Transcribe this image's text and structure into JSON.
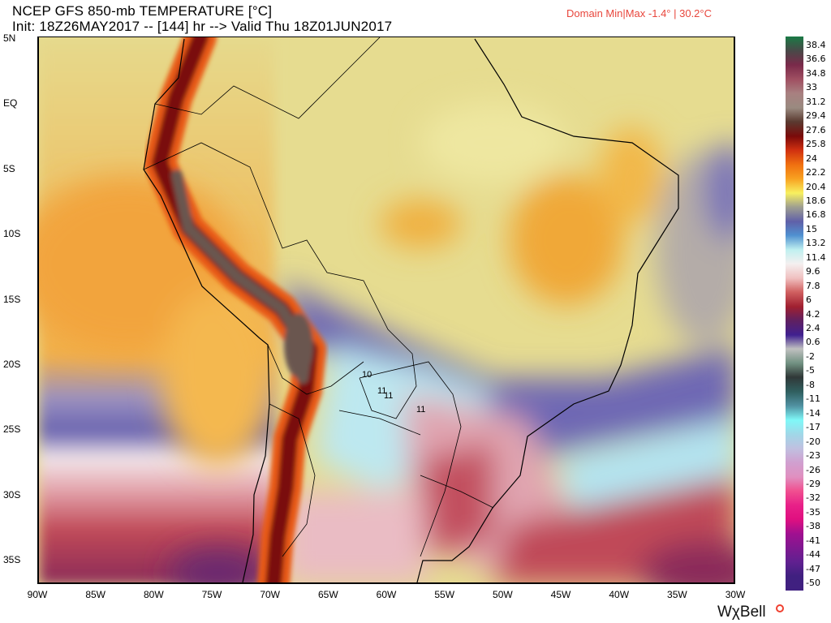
{
  "header": {
    "title": "NCEP GFS 850-mb TEMPERATURE [°C]",
    "subtitle": "Init: 18Z26MAY2017 -- [144] hr --> Valid Thu 18Z01JUN2017",
    "domain_minmax": "Domain Min|Max -1.4° | 30.2°C"
  },
  "map": {
    "lat_labels": [
      "5N",
      "EQ",
      "5S",
      "10S",
      "15S",
      "20S",
      "25S",
      "30S",
      "35S"
    ],
    "lon_labels": [
      "90W",
      "85W",
      "80W",
      "75W",
      "70W",
      "65W",
      "60W",
      "55W",
      "50W",
      "45W",
      "40W",
      "35W",
      "30W"
    ],
    "contour_labels": [
      "10",
      "11",
      "11",
      "11"
    ]
  },
  "colorbar": [
    {
      "label": "38.4",
      "color": "#1a7a45"
    },
    {
      "label": "36.6",
      "color": "#4a4848"
    },
    {
      "label": "34.8",
      "color": "#7a2a4a"
    },
    {
      "label": "33",
      "color": "#a05062"
    },
    {
      "label": "31.2",
      "color": "#a88080"
    },
    {
      "label": "29.4",
      "color": "#9a8a80"
    },
    {
      "label": "27.6",
      "color": "#5a3a30"
    },
    {
      "label": "25.8",
      "color": "#7a0a0a"
    },
    {
      "label": "24",
      "color": "#d03010"
    },
    {
      "label": "22.2",
      "color": "#f07010"
    },
    {
      "label": "20.4",
      "color": "#f8a020"
    },
    {
      "label": "18.6",
      "color": "#f8f060"
    },
    {
      "label": "16.8",
      "color": "#a0a090"
    },
    {
      "label": "15",
      "color": "#6060a8"
    },
    {
      "label": "13.2",
      "color": "#5090d0"
    },
    {
      "label": "11.4",
      "color": "#c0f0f0"
    },
    {
      "label": "9.6",
      "color": "#f4f0f0"
    },
    {
      "label": "7.8",
      "color": "#f0c0c0"
    },
    {
      "label": "6",
      "color": "#d06060"
    },
    {
      "label": "4.2",
      "color": "#a02030"
    },
    {
      "label": "2.4",
      "color": "#602060"
    },
    {
      "label": "0.6",
      "color": "#402090"
    },
    {
      "label": "-2",
      "color": "#c0c0c0"
    },
    {
      "label": "-5",
      "color": "#709080"
    },
    {
      "label": "-8",
      "color": "#303838"
    },
    {
      "label": "-11",
      "color": "#306060"
    },
    {
      "label": "-14",
      "color": "#5090a0"
    },
    {
      "label": "-17",
      "color": "#80f8f8"
    },
    {
      "label": "-20",
      "color": "#a0d8e8"
    },
    {
      "label": "-23",
      "color": "#c0c0e0"
    },
    {
      "label": "-26",
      "color": "#d0a0d0"
    },
    {
      "label": "-29",
      "color": "#e090c0"
    },
    {
      "label": "-32",
      "color": "#f05090"
    },
    {
      "label": "-35",
      "color": "#e82088"
    },
    {
      "label": "-38",
      "color": "#e01080"
    },
    {
      "label": "-41",
      "color": "#a01090"
    },
    {
      "label": "-44",
      "color": "#801890"
    },
    {
      "label": "-47",
      "color": "#602090"
    },
    {
      "label": "-50",
      "color": "#402080"
    }
  ],
  "branding": {
    "logo": "WχBell"
  }
}
